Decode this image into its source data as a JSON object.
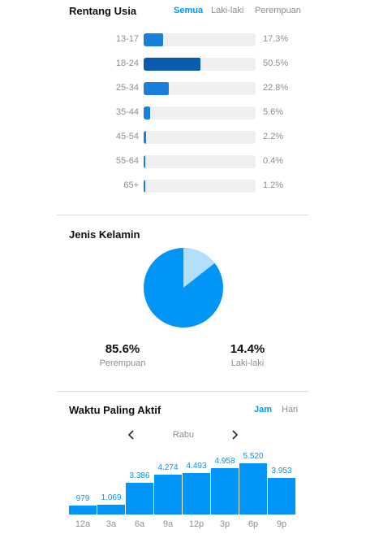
{
  "age": {
    "title": "Rentang Usia",
    "tabs": [
      {
        "label": "Semua",
        "active": true
      },
      {
        "label": "Laki-laki",
        "active": false
      },
      {
        "label": "Perempuan",
        "active": false
      }
    ],
    "rows": [
      {
        "label": "13-17",
        "value": 17.3,
        "pct": "17.3%"
      },
      {
        "label": "18-24",
        "value": 50.5,
        "pct": "50.5%"
      },
      {
        "label": "25-34",
        "value": 22.8,
        "pct": "22.8%"
      },
      {
        "label": "35-44",
        "value": 5.6,
        "pct": "5.6%"
      },
      {
        "label": "45-54",
        "value": 2.2,
        "pct": "2.2%"
      },
      {
        "label": "55-64",
        "value": 0.4,
        "pct": "0.4%"
      },
      {
        "label": "65+",
        "value": 1.2,
        "pct": "1.2%"
      }
    ]
  },
  "gender": {
    "title": "Jenis Kelamin",
    "female": {
      "value": "85.6%",
      "label": "Perempuan",
      "share": 85.6
    },
    "male": {
      "value": "14.4%",
      "label": "Laki-laki",
      "share": 14.4
    },
    "colors": {
      "female": "#0095f6",
      "male": "#b2dffc"
    }
  },
  "active": {
    "title": "Waktu Paling Aktif",
    "tabs": [
      {
        "label": "Jam",
        "active": true
      },
      {
        "label": "Hari",
        "active": false
      }
    ],
    "day": "Rabu",
    "prev_icon": "chevron-left-icon",
    "next_icon": "chevron-right-icon"
  },
  "chart_data": {
    "type": "bar",
    "title": "Waktu Paling Aktif",
    "categories": [
      "12a",
      "3a",
      "6a",
      "9a",
      "12p",
      "3p",
      "6p",
      "9p"
    ],
    "values": [
      979,
      1069,
      3386,
      4274,
      4493,
      4958,
      5520,
      3953
    ],
    "value_labels": [
      "979",
      "1.069",
      "3.386",
      "4.274",
      "4.493",
      "4.958",
      "5.520",
      "3.953"
    ],
    "xlabel": "",
    "ylabel": "",
    "ylim": [
      0,
      5520
    ]
  }
}
